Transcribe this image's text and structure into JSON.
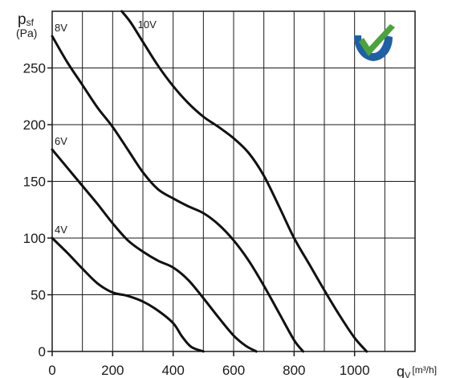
{
  "chart_data": {
    "type": "line",
    "xlabel": "q",
    "xlabel_sub": "V",
    "xunit": "[m³/h]",
    "ylabel": "p",
    "ylabel_sub": "sf",
    "yunit": "(Pa)",
    "xlim": [
      0,
      1200
    ],
    "ylim": [
      0,
      300
    ],
    "xticks": [
      0,
      200,
      400,
      600,
      800,
      1000
    ],
    "yticks": [
      0,
      50,
      100,
      150,
      200,
      250
    ],
    "grid": true,
    "series": [
      {
        "name": "4V",
        "x": [
          0,
          50,
          100,
          150,
          200,
          250,
          300,
          350,
          400,
          430,
          460,
          500
        ],
        "y": [
          100,
          87,
          73,
          60,
          52,
          49,
          44,
          36,
          25,
          13,
          4,
          0
        ]
      },
      {
        "name": "6V",
        "x": [
          0,
          50,
          100,
          150,
          200,
          250,
          300,
          350,
          400,
          450,
          500,
          550,
          600,
          640,
          675
        ],
        "y": [
          178,
          162,
          146,
          130,
          113,
          98,
          88,
          80,
          74,
          63,
          47,
          30,
          14,
          5,
          0
        ]
      },
      {
        "name": "8V",
        "x": [
          0,
          50,
          100,
          150,
          200,
          250,
          300,
          350,
          400,
          450,
          500,
          550,
          600,
          650,
          700,
          750,
          800,
          830
        ],
        "y": [
          278,
          255,
          235,
          215,
          198,
          178,
          158,
          143,
          135,
          128,
          122,
          112,
          98,
          80,
          58,
          34,
          10,
          0
        ]
      },
      {
        "name": "10V",
        "x": [
          230,
          260,
          300,
          350,
          400,
          450,
          500,
          550,
          600,
          650,
          700,
          750,
          800,
          850,
          900,
          950,
          1000,
          1040
        ],
        "y": [
          300,
          290,
          273,
          252,
          234,
          219,
          207,
          198,
          188,
          175,
          155,
          128,
          100,
          77,
          54,
          32,
          12,
          0
        ]
      }
    ]
  }
}
